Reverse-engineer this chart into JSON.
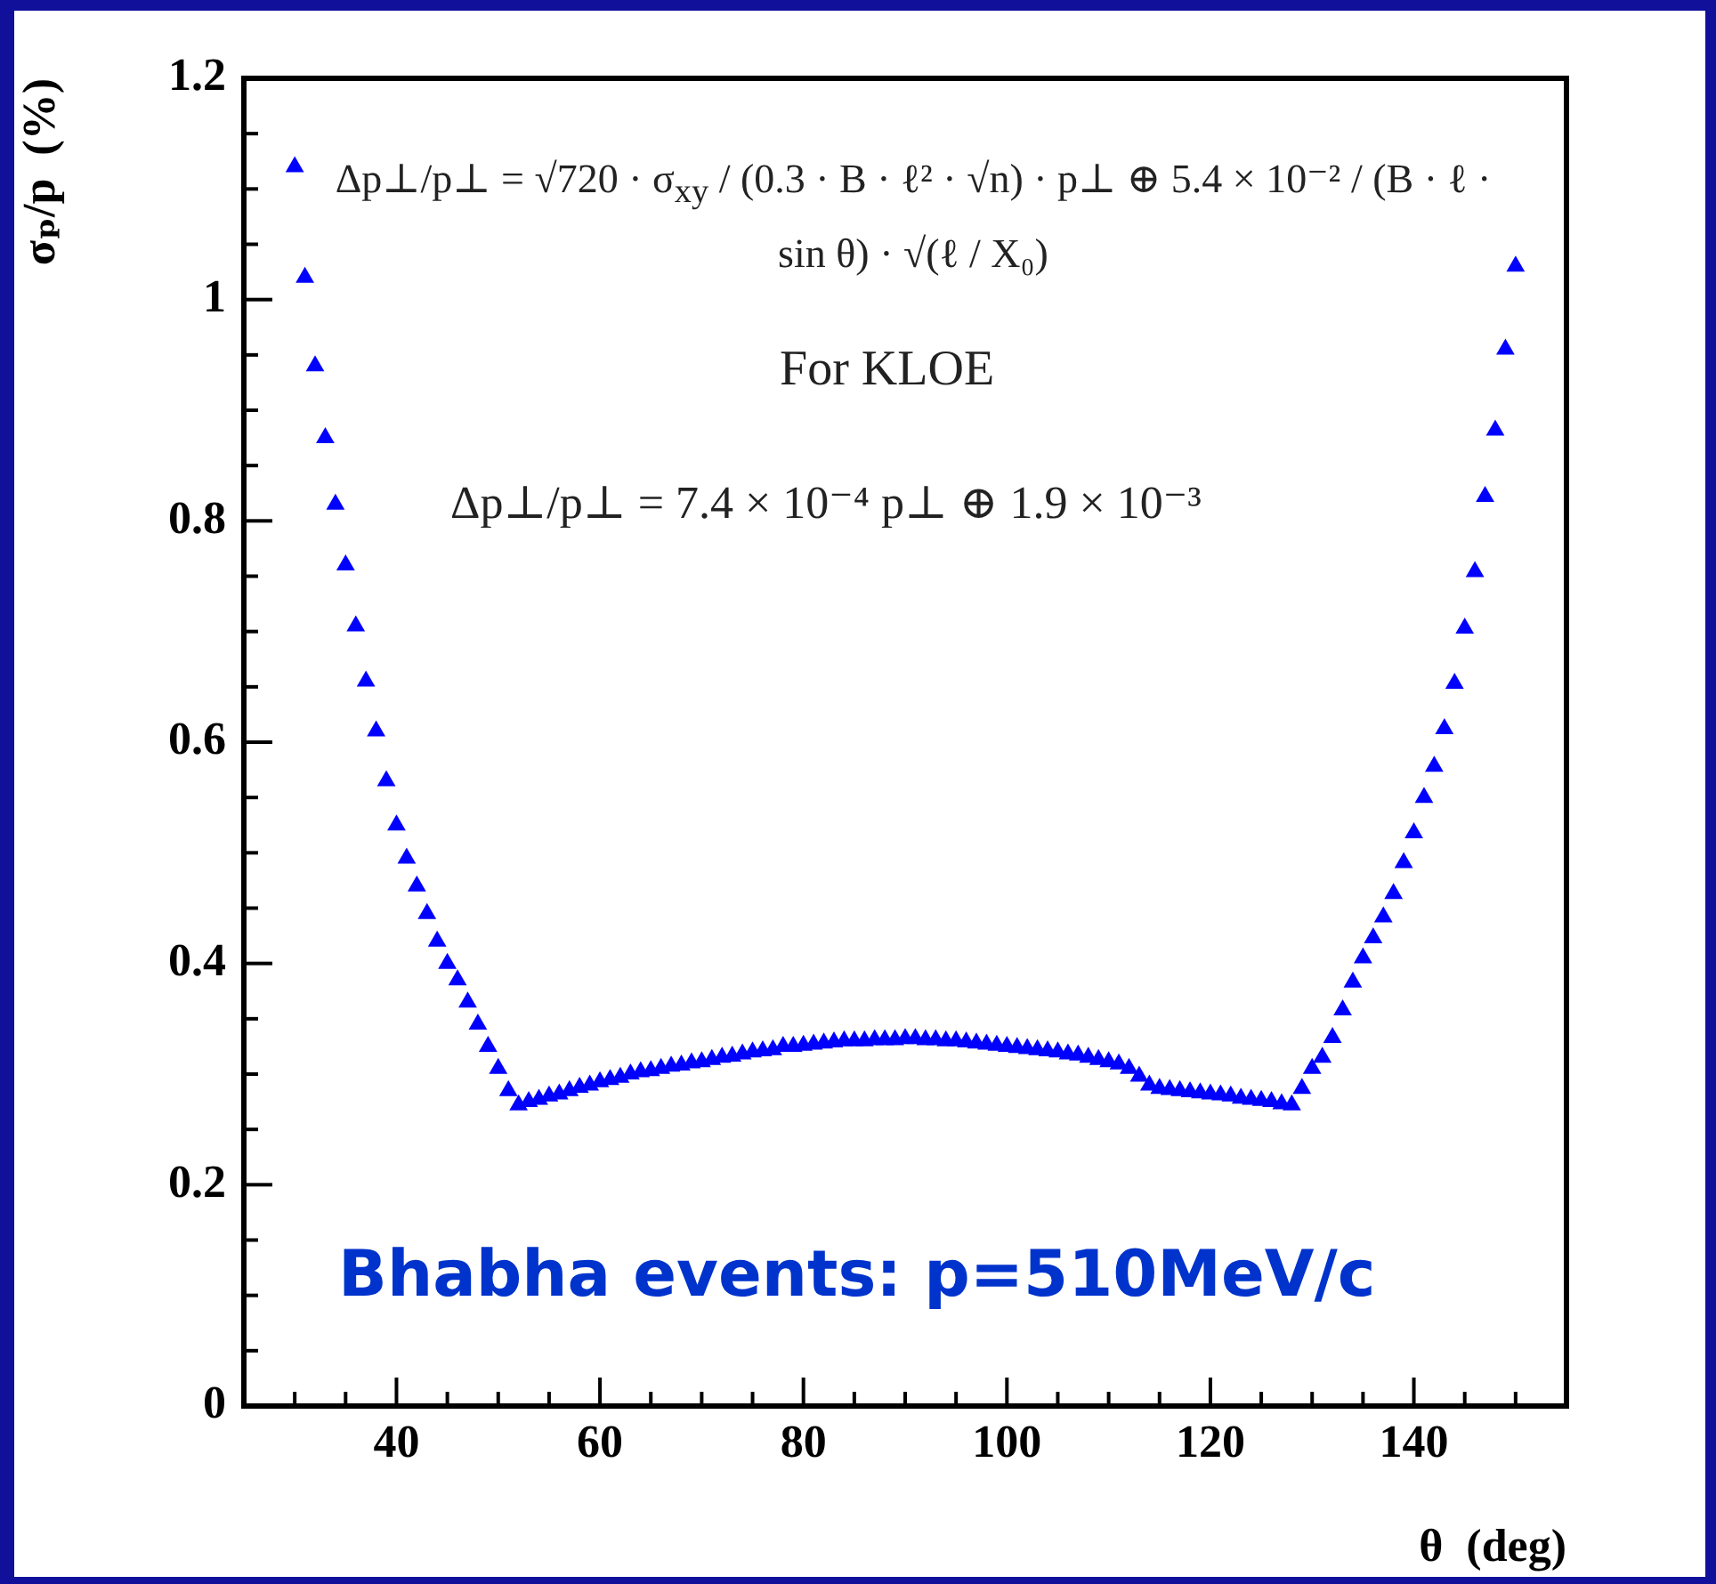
{
  "chart_data": {
    "type": "scatter",
    "xlabel": "θ  (deg)",
    "ylabel": "σₚ/p  (%)",
    "marker": "triangle",
    "xlim": [
      25,
      155
    ],
    "ylim": [
      0,
      1.2
    ],
    "xticks": [
      {
        "value": 25,
        "label": null
      },
      {
        "value": 30,
        "label": null
      },
      {
        "value": 35,
        "label": null
      },
      40,
      {
        "value": 45,
        "label": null
      },
      {
        "value": 50,
        "label": null
      },
      {
        "value": 55,
        "label": null
      },
      60,
      {
        "value": 65,
        "label": null
      },
      {
        "value": 70,
        "label": null
      },
      {
        "value": 75,
        "label": null
      },
      80,
      {
        "value": 85,
        "label": null
      },
      {
        "value": 90,
        "label": null
      },
      {
        "value": 95,
        "label": null
      },
      100,
      {
        "value": 105,
        "label": null
      },
      {
        "value": 110,
        "label": null
      },
      {
        "value": 115,
        "label": null
      },
      120,
      {
        "value": 125,
        "label": null
      },
      {
        "value": 130,
        "label": null
      },
      {
        "value": 135,
        "label": null
      },
      140,
      {
        "value": 145,
        "label": null
      },
      {
        "value": 150,
        "label": null
      }
    ],
    "yticks": [
      0,
      {
        "value": 0.05,
        "label": null
      },
      {
        "value": 0.1,
        "label": null
      },
      {
        "value": 0.15,
        "label": null
      },
      0.2,
      {
        "value": 0.25,
        "label": null
      },
      {
        "value": 0.3,
        "label": null
      },
      {
        "value": 0.35,
        "label": null
      },
      0.4,
      {
        "value": 0.45,
        "label": null
      },
      {
        "value": 0.5,
        "label": null
      },
      {
        "value": 0.55,
        "label": null
      },
      0.6,
      {
        "value": 0.65,
        "label": null
      },
      {
        "value": 0.7,
        "label": null
      },
      {
        "value": 0.75,
        "label": null
      },
      0.8,
      {
        "value": 0.85,
        "label": null
      },
      {
        "value": 0.9,
        "label": null
      },
      {
        "value": 0.95,
        "label": null
      },
      1,
      {
        "value": 1.05,
        "label": null
      },
      {
        "value": 1.1,
        "label": null
      },
      {
        "value": 1.15,
        "label": null
      },
      1.2
    ],
    "annotations": [
      "Δp⊥/p⊥ = √720 · σ$_{xy}$ / (0.3 · B · ℓ² · √n) · p⊥ ⊕ 5.4 × 10⁻² / (B · ℓ · sin θ) · √(ℓ / X₀)",
      "For KLOE",
      "Δp⊥/p⊥ = 7.4 × 10⁻⁴ p⊥ ⊕ 1.9 × 10⁻³",
      "Bhabha events: p=510MeV/c"
    ],
    "series": [
      {
        "color": "#0000ff",
        "x": [
          30,
          31,
          32,
          33,
          34,
          35,
          36,
          37,
          38,
          39,
          40,
          41,
          42,
          43,
          44,
          45,
          46,
          47,
          48,
          49,
          50,
          51,
          52,
          53,
          54,
          55,
          56,
          57,
          58,
          59,
          60,
          61,
          62,
          63,
          64,
          65,
          66,
          67,
          68,
          69,
          70,
          71,
          72,
          73,
          74,
          75,
          76,
          77,
          78,
          79,
          80,
          81,
          82,
          83,
          84,
          85,
          86,
          87,
          88,
          89,
          90,
          91,
          92,
          93,
          94,
          95,
          96,
          97,
          98,
          99,
          100,
          101,
          102,
          103,
          104,
          105,
          106,
          107,
          108,
          109,
          110,
          111,
          112,
          113,
          114,
          115,
          116,
          117,
          118,
          119,
          120,
          121,
          122,
          123,
          124,
          125,
          126,
          127,
          128,
          129,
          130,
          131,
          132,
          133,
          134,
          135,
          136,
          137,
          138,
          139,
          140,
          141,
          142,
          143,
          144,
          145,
          146,
          147,
          148,
          149,
          150
        ],
        "values": [
          1.12,
          1.02,
          0.94,
          0.875,
          0.815,
          0.76,
          0.705,
          0.655,
          0.61,
          0.565,
          0.525,
          0.495,
          0.47,
          0.445,
          0.42,
          0.4,
          0.385,
          0.365,
          0.345,
          0.325,
          0.305,
          0.285,
          0.272,
          0.275,
          0.277,
          0.28,
          0.282,
          0.285,
          0.288,
          0.29,
          0.293,
          0.295,
          0.297,
          0.3,
          0.302,
          0.303,
          0.305,
          0.307,
          0.308,
          0.31,
          0.311,
          0.313,
          0.315,
          0.316,
          0.318,
          0.32,
          0.321,
          0.322,
          0.325,
          0.325,
          0.326,
          0.327,
          0.328,
          0.329,
          0.33,
          0.33,
          0.33,
          0.331,
          0.331,
          0.331,
          0.332,
          0.332,
          0.331,
          0.331,
          0.33,
          0.33,
          0.329,
          0.328,
          0.327,
          0.326,
          0.325,
          0.324,
          0.323,
          0.322,
          0.321,
          0.32,
          0.318,
          0.317,
          0.315,
          0.313,
          0.311,
          0.309,
          0.305,
          0.298,
          0.29,
          0.287,
          0.286,
          0.285,
          0.284,
          0.283,
          0.282,
          0.281,
          0.28,
          0.278,
          0.277,
          0.276,
          0.275,
          0.273,
          0.272,
          0.287,
          0.305,
          0.315,
          0.333,
          0.358,
          0.383,
          0.405,
          0.423,
          0.442,
          0.463,
          0.491,
          0.518,
          0.55,
          0.578,
          0.612,
          0.653,
          0.703,
          0.754,
          0.822,
          0.882,
          0.955,
          1.03
        ]
      }
    ]
  }
}
